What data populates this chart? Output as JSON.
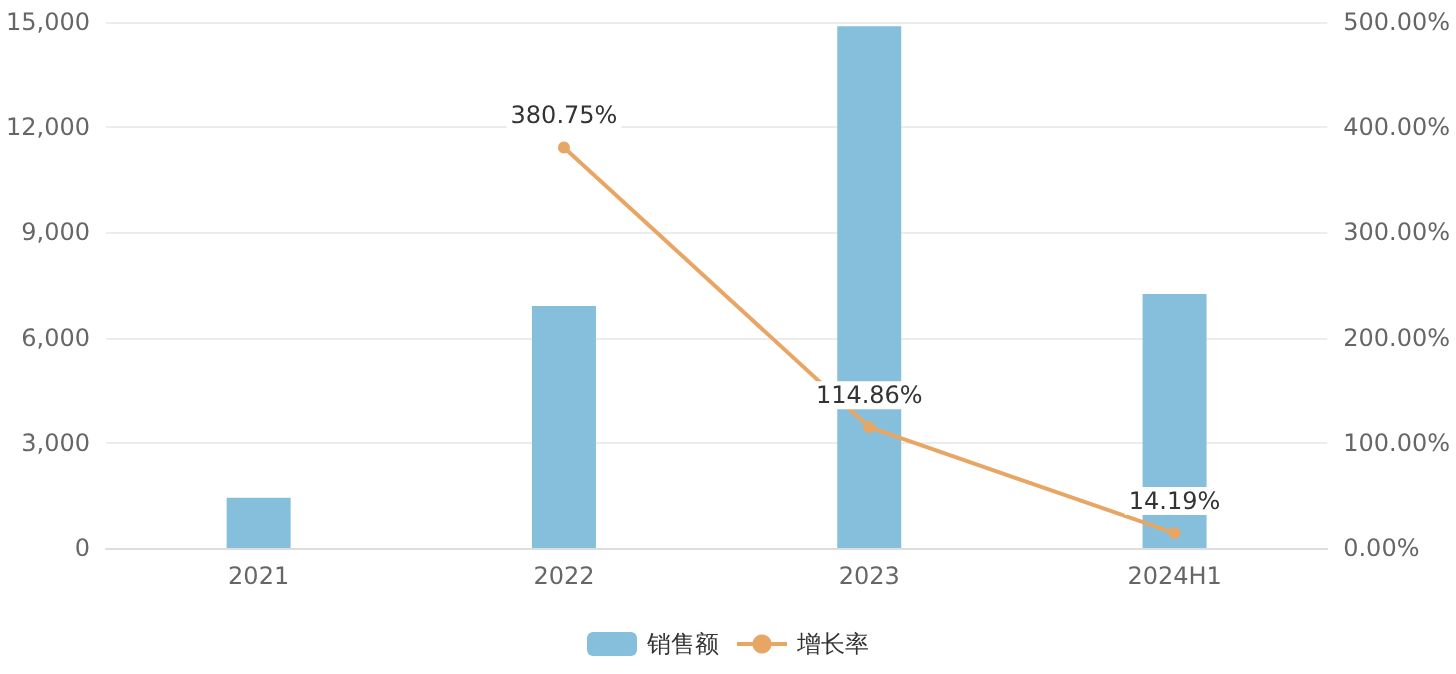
{
  "chart_data": {
    "type": "bar",
    "categories": [
      "2021",
      "2022",
      "2023",
      "2024H1"
    ],
    "series": [
      {
        "name": "销售额",
        "color": "#86bfdc",
        "values": [
          1430,
          6900,
          14880,
          7240
        ]
      },
      {
        "name": "增长率",
        "type": "line",
        "axis": "y2",
        "color": "#e8a665",
        "marker": "circle",
        "values": [
          null,
          380.75,
          114.86,
          14.19
        ],
        "value_labels": [
          null,
          "380.75%",
          "114.86%",
          "14.19%"
        ]
      }
    ],
    "ylim": [
      0,
      15000
    ],
    "yticks": [
      {
        "value": 0,
        "label": "0"
      },
      {
        "value": 3000,
        "label": "3,000"
      },
      {
        "value": 6000,
        "label": "6,000"
      },
      {
        "value": 9000,
        "label": "9,000"
      },
      {
        "value": 12000,
        "label": "12,000"
      },
      {
        "value": 15000,
        "label": "15,000"
      }
    ],
    "y2lim": [
      0,
      500
    ],
    "y2ticks": [
      {
        "value": 0,
        "label": "0.00%"
      },
      {
        "value": 100,
        "label": "100.00%"
      },
      {
        "value": 200,
        "label": "200.00%"
      },
      {
        "value": 300,
        "label": "300.00%"
      },
      {
        "value": 400,
        "label": "400.00%"
      },
      {
        "value": 500,
        "label": "500.00%"
      }
    ],
    "grid": "y",
    "legend": "bottom"
  }
}
